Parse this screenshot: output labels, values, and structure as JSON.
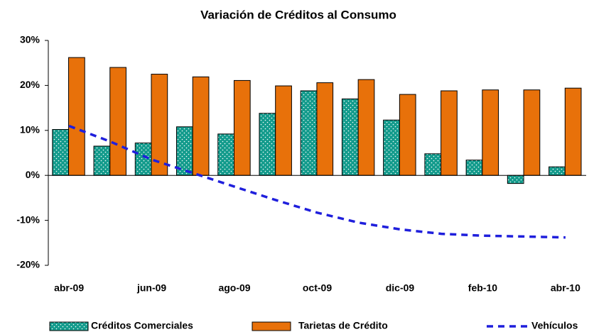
{
  "chart_data": {
    "type": "bar-line",
    "title": "Variación de Créditos al Consumo",
    "categories": [
      "abr-09",
      null,
      "jun-09",
      null,
      "ago-09",
      null,
      "oct-09",
      null,
      "dic-09",
      null,
      "feb-10",
      null,
      "abr-10"
    ],
    "series": [
      {
        "name": "Créditos Comerciales",
        "type": "bar",
        "color": "#139b8c",
        "values": [
          10.2,
          6.5,
          7.2,
          10.8,
          9.2,
          13.8,
          18.8,
          17.0,
          12.3,
          4.8,
          3.4,
          -1.8,
          1.9
        ]
      },
      {
        "name": "Tarietas de Crédito",
        "type": "bar",
        "color": "#e8710a",
        "values": [
          26.2,
          24.0,
          22.5,
          21.9,
          21.1,
          19.9,
          20.6,
          21.3,
          18.0,
          18.8,
          19.0,
          19.0,
          19.4
        ]
      },
      {
        "name": "Vehículos",
        "type": "line",
        "color": "#1f1fdc",
        "values": [
          11.0,
          7.5,
          3.5,
          0.5,
          -2.5,
          -5.5,
          -8.3,
          -10.5,
          -12.0,
          -13.0,
          -13.4,
          -13.6,
          -13.8
        ]
      }
    ],
    "ylim": [
      -20,
      30
    ],
    "yticks": [
      {
        "value": -20,
        "label": "-20%"
      },
      {
        "value": -10,
        "label": "-10%"
      },
      {
        "value": 0,
        "label": "0%"
      },
      {
        "value": 10,
        "label": "10%"
      },
      {
        "value": 20,
        "label": "20%"
      },
      {
        "value": 30,
        "label": "30%"
      }
    ],
    "grid": false
  }
}
